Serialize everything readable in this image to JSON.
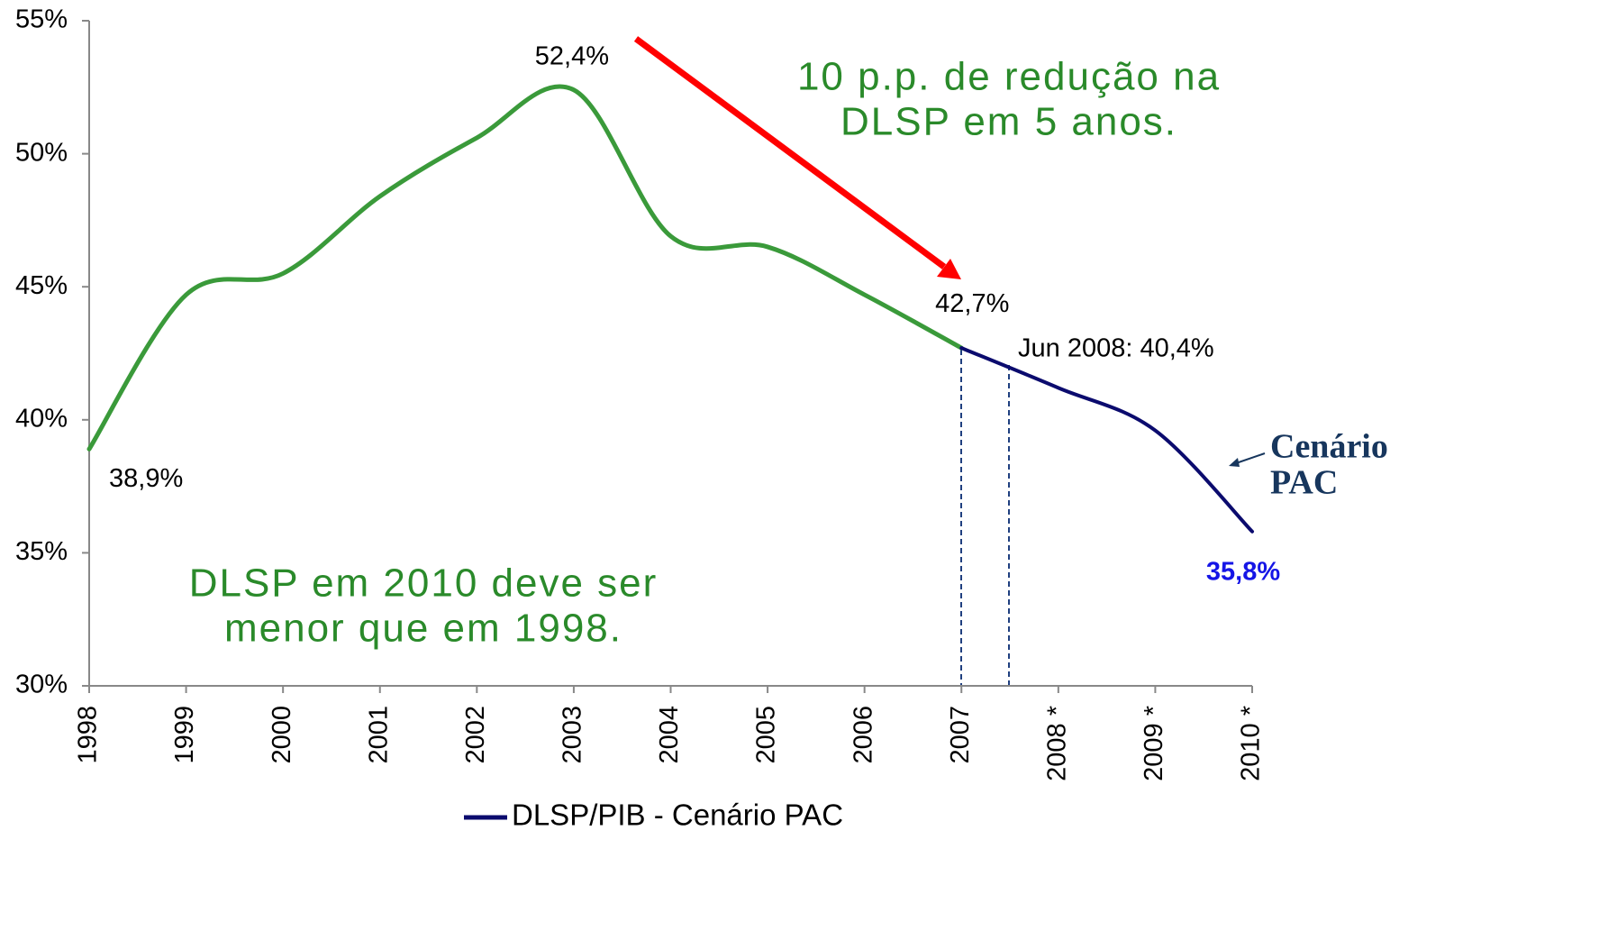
{
  "chart_data": {
    "type": "line",
    "categories": [
      "1998",
      "1999",
      "2000",
      "2001",
      "2002",
      "2003",
      "2004",
      "2005",
      "2006",
      "2007",
      "2008 *",
      "2009 *",
      "2010 *"
    ],
    "series": [
      {
        "color": "#3a9a3a",
        "values": [
          38.9,
          44.7,
          45.5,
          48.4,
          50.6,
          52.4,
          46.9,
          46.5,
          44.7,
          42.7,
          null,
          null,
          null
        ],
        "value_labels": [
          "38,9%",
          null,
          null,
          null,
          null,
          "52,4%",
          null,
          null,
          null,
          "42,7%",
          null,
          null,
          null
        ]
      },
      {
        "name": "DLSP/PIB - Cenário PAC",
        "color": "#0b0b6e",
        "values": [
          null,
          null,
          null,
          null,
          null,
          null,
          null,
          null,
          null,
          42.7,
          41.2,
          39.6,
          35.8
        ],
        "value_labels": [
          null,
          null,
          null,
          null,
          null,
          null,
          null,
          null,
          null,
          null,
          null,
          null,
          "35,8%"
        ]
      }
    ],
    "ylim": [
      30,
      55
    ],
    "yticks": [
      {
        "value": 30,
        "label": "30%"
      },
      {
        "value": 35,
        "label": "35%"
      },
      {
        "value": 40,
        "label": "40%"
      },
      {
        "value": 45,
        "label": "45%"
      },
      {
        "value": 50,
        "label": "50%"
      },
      {
        "value": 55,
        "label": "55%"
      }
    ],
    "legend": "bottom",
    "annotations": [
      {
        "lines": [
          "10 p.p. de redução na",
          "DLSP em 5 anos."
        ]
      },
      {
        "lines": [
          "DLSP em 2010 deve ser",
          "menor que em 1998."
        ]
      },
      {
        "lines": [
          "Cenário",
          "PAC"
        ]
      },
      {
        "lines": [
          "Jun 2008: 40,4%"
        ]
      }
    ]
  }
}
